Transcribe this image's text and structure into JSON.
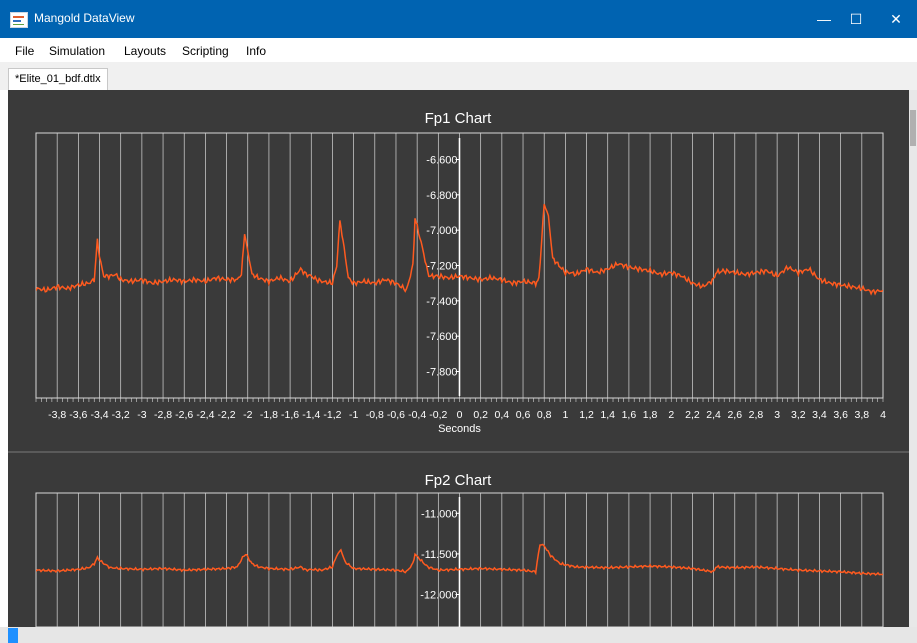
{
  "window": {
    "title": "Mangold DataView",
    "minimize_icon": "—",
    "maximize_icon": "☐",
    "close_icon": "✕"
  },
  "menu": [
    "File",
    "Simulation",
    "Layouts",
    "Scripting",
    "Info"
  ],
  "tab": {
    "label": "*Elite_01_bdf.dtlx"
  },
  "colors": {
    "titlebar": "#0063b1",
    "chart_bg": "#3a3a3a",
    "grid": "#d8d8d8",
    "trace": "#ff5a1f"
  },
  "chart_data": [
    {
      "type": "line",
      "title": "Fp1 Chart",
      "xlabel": "Seconds",
      "ylabel": "",
      "xlim": [
        -4,
        4
      ],
      "ylim": [
        -7.95,
        -6.45
      ],
      "grid": true,
      "y_ticks": [
        "-6.600",
        "-6.800",
        "-7.000",
        "-7.200",
        "-7.400",
        "-7.600",
        "-7.800"
      ],
      "x_ticks": [
        "-3,8",
        "-3,6",
        "-3,4",
        "-3,2",
        "-3",
        "-2,8",
        "-2,6",
        "-2,4",
        "-2,2",
        "-2",
        "-1,8",
        "-1,6",
        "-1,4",
        "-1,2",
        "-1",
        "-0,8",
        "-0,6",
        "-0,4",
        "-0,2",
        "0",
        "0,2",
        "0,4",
        "0,6",
        "0,8",
        "1",
        "1,2",
        "1,4",
        "1,6",
        "1,8",
        "2",
        "2,2",
        "2,4",
        "2,6",
        "2,8",
        "3",
        "3,2",
        "3,4",
        "3,6",
        "3,8",
        "4"
      ],
      "series": [
        {
          "x": [
            -4,
            -3.9,
            -3.8,
            -3.7,
            -3.6,
            -3.5,
            -3.45,
            -3.42,
            -3.4,
            -3.36,
            -3.3,
            -3.25,
            -3.2,
            -3.1,
            -3.0,
            -2.9,
            -2.8,
            -2.7,
            -2.6,
            -2.5,
            -2.4,
            -2.3,
            -2.2,
            -2.1,
            -2.06,
            -2.03,
            -2.0,
            -1.96,
            -1.9,
            -1.8,
            -1.7,
            -1.6,
            -1.5,
            -1.45,
            -1.4,
            -1.35,
            -1.3,
            -1.2,
            -1.16,
            -1.13,
            -1.12,
            -1.09,
            -1.05,
            -1.0,
            -0.9,
            -0.8,
            -0.7,
            -0.6,
            -0.5,
            -0.44,
            -0.42,
            -0.4,
            -0.35,
            -0.3,
            -0.28,
            -0.2,
            -0.1,
            0.0,
            0.1,
            0.2,
            0.3,
            0.4,
            0.5,
            0.6,
            0.72,
            0.75,
            0.8,
            0.84,
            0.88,
            1.0,
            1.05,
            1.1,
            1.2,
            1.3,
            1.4,
            1.5,
            1.6,
            1.7,
            1.8,
            1.9,
            2.0,
            2.1,
            2.2,
            2.3,
            2.4,
            2.42,
            2.5,
            2.6,
            2.7,
            2.8,
            2.9,
            3.0,
            3.1,
            3.2,
            3.3,
            3.4,
            3.5,
            3.6,
            3.7,
            3.8,
            3.9,
            4.0
          ],
          "y": [
            -7.33,
            -7.34,
            -7.32,
            -7.33,
            -7.31,
            -7.3,
            -7.28,
            -7.06,
            -7.15,
            -7.26,
            -7.26,
            -7.25,
            -7.28,
            -7.29,
            -7.28,
            -7.3,
            -7.29,
            -7.28,
            -7.29,
            -7.28,
            -7.29,
            -7.27,
            -7.28,
            -7.28,
            -7.25,
            -7.02,
            -7.12,
            -7.25,
            -7.27,
            -7.29,
            -7.27,
            -7.29,
            -7.22,
            -7.25,
            -7.26,
            -7.28,
            -7.29,
            -7.3,
            -7.2,
            -6.95,
            -6.98,
            -7.1,
            -7.27,
            -7.3,
            -7.29,
            -7.3,
            -7.28,
            -7.3,
            -7.34,
            -7.2,
            -6.93,
            -6.98,
            -7.1,
            -7.24,
            -7.26,
            -7.26,
            -7.27,
            -7.26,
            -7.27,
            -7.28,
            -7.27,
            -7.28,
            -7.3,
            -7.29,
            -7.3,
            -7.28,
            -6.85,
            -6.92,
            -7.16,
            -7.24,
            -7.24,
            -7.25,
            -7.22,
            -7.24,
            -7.22,
            -7.19,
            -7.21,
            -7.22,
            -7.23,
            -7.25,
            -7.24,
            -7.26,
            -7.3,
            -7.32,
            -7.28,
            -7.24,
            -7.23,
            -7.24,
            -7.25,
            -7.24,
            -7.23,
            -7.26,
            -7.21,
            -7.24,
            -7.22,
            -7.28,
            -7.3,
            -7.31,
            -7.32,
            -7.33,
            -7.35,
            -7.34
          ]
        }
      ]
    },
    {
      "type": "line",
      "title": "Fp2 Chart",
      "xlabel": "",
      "ylabel": "",
      "xlim": [
        -4,
        4
      ],
      "ylim": [
        -12.4,
        -10.75
      ],
      "grid": true,
      "y_ticks": [
        "-11.000",
        "-11.500",
        "-12.000"
      ],
      "series": [
        {
          "x": [
            -4,
            -3.8,
            -3.6,
            -3.5,
            -3.45,
            -3.42,
            -3.38,
            -3.3,
            -3.2,
            -3.0,
            -2.8,
            -2.6,
            -2.4,
            -2.2,
            -2.1,
            -2.05,
            -2.02,
            -1.96,
            -1.9,
            -1.8,
            -1.6,
            -1.5,
            -1.45,
            -1.4,
            -1.3,
            -1.2,
            -1.16,
            -1.12,
            -1.08,
            -1.0,
            -0.8,
            -0.6,
            -0.5,
            -0.44,
            -0.42,
            -0.38,
            -0.3,
            -0.2,
            0,
            0.2,
            0.4,
            0.6,
            0.72,
            0.76,
            0.8,
            0.86,
            0.95,
            1.1,
            1.4,
            1.6,
            1.8,
            2.0,
            2.2,
            2.4,
            2.42,
            2.6,
            2.8,
            3.0,
            3.2,
            3.4,
            3.6,
            3.8,
            4.0
          ],
          "y": [
            -11.7,
            -11.71,
            -11.69,
            -11.67,
            -11.62,
            -11.55,
            -11.6,
            -11.67,
            -11.68,
            -11.69,
            -11.68,
            -11.7,
            -11.69,
            -11.68,
            -11.66,
            -11.55,
            -11.5,
            -11.62,
            -11.66,
            -11.68,
            -11.69,
            -11.66,
            -11.7,
            -11.69,
            -11.7,
            -11.66,
            -11.52,
            -11.45,
            -11.6,
            -11.68,
            -11.69,
            -11.7,
            -11.72,
            -11.62,
            -11.5,
            -11.56,
            -11.66,
            -11.7,
            -11.69,
            -11.68,
            -11.69,
            -11.7,
            -11.72,
            -11.38,
            -11.4,
            -11.52,
            -11.62,
            -11.66,
            -11.67,
            -11.66,
            -11.65,
            -11.66,
            -11.68,
            -11.72,
            -11.66,
            -11.67,
            -11.66,
            -11.68,
            -11.7,
            -11.71,
            -11.72,
            -11.74,
            -11.75
          ]
        }
      ]
    }
  ]
}
